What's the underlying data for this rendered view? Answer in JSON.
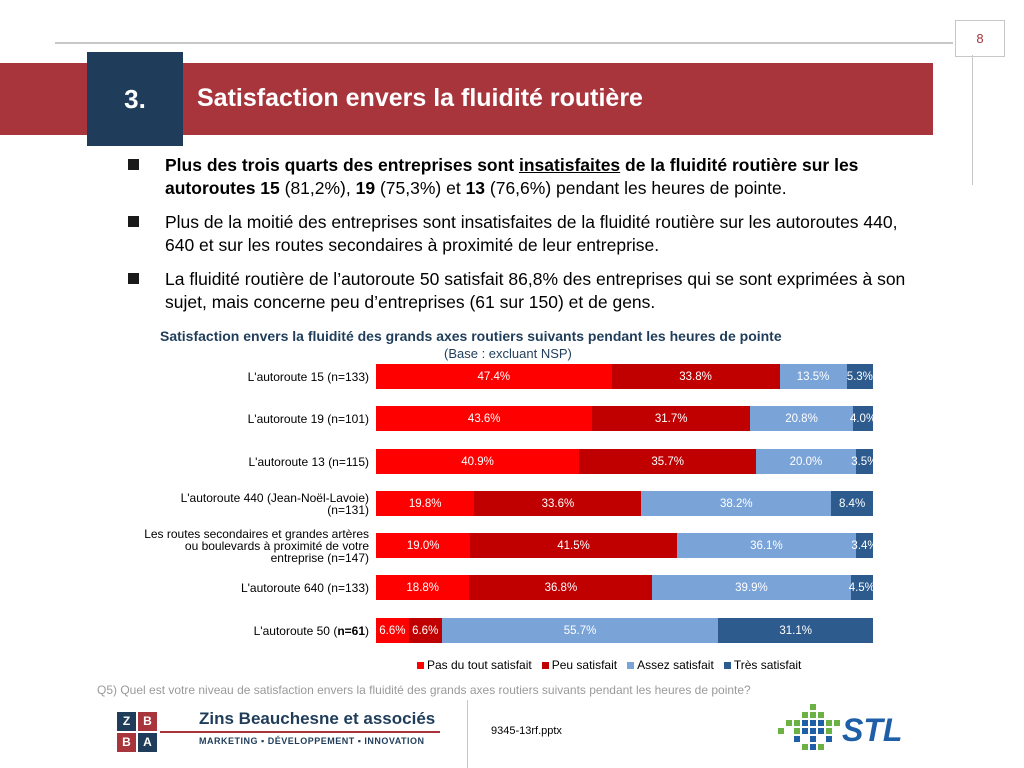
{
  "page_number": "8",
  "section": {
    "number": "3.",
    "title": "Satisfaction envers la fluidité routière"
  },
  "bullets": [
    {
      "parts": [
        {
          "text": "Plus des trois quarts des entreprises sont ",
          "style": "bold"
        },
        {
          "text": "insatisfaites",
          "style": "bold-underline"
        },
        {
          "text": " de la fluidité routière sur les autoroutes 15",
          "style": "bold"
        },
        {
          "text": " (81,2%), ",
          "style": "normal"
        },
        {
          "text": "19",
          "style": "bold"
        },
        {
          "text": " (75,3%) et ",
          "style": "normal"
        },
        {
          "text": "13",
          "style": "bold"
        },
        {
          "text": " (76,6%) pendant les heures de pointe.",
          "style": "normal"
        }
      ]
    },
    {
      "parts": [
        {
          "text": "Plus de la moitié des entreprises sont insatisfaites de la fluidité routière sur les autoroutes 440, 640 et sur les routes secondaires à proximité de leur entreprise.",
          "style": "normal"
        }
      ]
    },
    {
      "parts": [
        {
          "text": "La fluidité routière de l’autoroute 50 satisfait 86,8% des entreprises qui se sont exprimées à son sujet, mais concerne peu d’entreprises (61 sur 150) et de gens.",
          "style": "normal"
        }
      ]
    }
  ],
  "chart_data": {
    "type": "bar",
    "orientation": "horizontal",
    "stacked": "100%",
    "title": "Satisfaction envers la fluidité des grands axes routiers suivants pendant les heures de pointe",
    "subtitle": "(Base : excluant NSP)",
    "categories": [
      {
        "label": "L'autoroute 15 (n=133)",
        "bold_part": ""
      },
      {
        "label": "L'autoroute 19 (n=101)",
        "bold_part": ""
      },
      {
        "label": "L'autoroute 13 (n=115)",
        "bold_part": ""
      },
      {
        "label": "L'autoroute 440 (Jean-Noël-Lavoie) (n=131)",
        "bold_part": ""
      },
      {
        "label": "Les routes secondaires et grandes artères ou boulevards à proximité de votre entreprise (n=147)",
        "bold_part": ""
      },
      {
        "label": "L'autoroute 640 (n=133)",
        "bold_part": ""
      },
      {
        "label": "L'autoroute 50 (n=61)",
        "bold_part": "n=61"
      }
    ],
    "series": [
      {
        "name": "Pas du tout satisfait",
        "color": "#ff0000",
        "values": [
          47.4,
          43.6,
          40.9,
          19.8,
          19.0,
          18.8,
          6.6
        ],
        "labels": [
          "47.4%",
          "43.6%",
          "40.9%",
          "19.8%",
          "19.0%",
          "18.8%",
          "6.6%"
        ]
      },
      {
        "name": "Peu satisfait",
        "color": "#c00000",
        "values": [
          33.8,
          31.7,
          35.7,
          33.6,
          41.5,
          36.8,
          6.6
        ],
        "labels": [
          "33.8%",
          "31.7%",
          "35.7%",
          "33.6%",
          "41.5%",
          "36.8%",
          "6.6%"
        ]
      },
      {
        "name": "Assez satisfait",
        "color": "#7aa3d8",
        "values": [
          13.5,
          20.8,
          20.0,
          38.2,
          36.1,
          39.9,
          55.7
        ],
        "labels": [
          "13.5%",
          "20.8%",
          "20.0%",
          "38.2%",
          "36.1%",
          "39.9%",
          "55.7%"
        ]
      },
      {
        "name": "Très satisfait",
        "color": "#2e5b8e",
        "values": [
          5.3,
          4.0,
          3.5,
          8.4,
          3.4,
          4.5,
          31.1
        ],
        "labels": [
          "5.3%",
          "4.0%",
          "3.5%",
          "8.4%",
          "3.4%",
          "4.5%",
          "31.1%"
        ]
      }
    ],
    "xlim": [
      0,
      100
    ]
  },
  "question": "Q5) Quel est votre niveau de satisfaction envers la fluidité des grands axes routiers suivants pendant les heures de pointe?",
  "footer": {
    "firm_name": "Zins Beauchesne et associés",
    "firm_tagline": "MARKETING ▪ DÉVELOPPEMENT ▪ INNOVATION",
    "zba_letters": [
      "Z",
      "B",
      "B",
      "A"
    ],
    "filename": "9345-13rf.pptx",
    "stl_logo": "STL"
  },
  "colors": {
    "banner": "#a8343c",
    "navy": "#1f3d5a",
    "stl_blue": "#1f5fa8",
    "stl_green": "#6bb144"
  }
}
